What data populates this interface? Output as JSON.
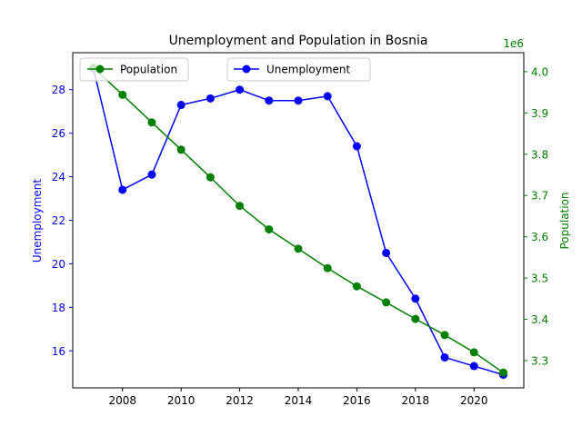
{
  "chart_data": {
    "type": "line",
    "title": "Unemployment and Population in Bosnia",
    "x": [
      2007,
      2008,
      2009,
      2010,
      2011,
      2012,
      2013,
      2014,
      2015,
      2016,
      2017,
      2018,
      2019,
      2020,
      2021
    ],
    "x_ticks": [
      2008,
      2010,
      2012,
      2014,
      2016,
      2018,
      2020
    ],
    "xlim": [
      2006.3,
      2021.7
    ],
    "left_axis": {
      "label": "Unemployment",
      "color": "#0000ff",
      "ylim": [
        14.3,
        29.7
      ],
      "ticks": [
        16,
        18,
        20,
        22,
        24,
        26,
        28
      ]
    },
    "right_axis": {
      "label": "Population",
      "color": "#008000",
      "offset_text": "1e6",
      "ylim": [
        3.234,
        4.046
      ],
      "ticks": [
        3.3,
        3.4,
        3.5,
        3.6,
        3.7,
        3.8,
        3.9,
        4.0
      ]
    },
    "series": [
      {
        "name": "Unemployment",
        "axis": "left",
        "color": "#0000ff",
        "values": [
          29.0,
          23.4,
          24.1,
          27.3,
          27.6,
          28.0,
          27.5,
          27.5,
          27.7,
          25.4,
          20.5,
          18.4,
          15.7,
          15.3,
          14.9
        ]
      },
      {
        "name": "Population",
        "axis": "right",
        "color": "#008000",
        "values": [
          4.01,
          3.944,
          3.877,
          3.811,
          3.744,
          3.675,
          3.618,
          3.571,
          3.524,
          3.48,
          3.441,
          3.401,
          3.362,
          3.32,
          3.271
        ]
      }
    ],
    "legends": [
      {
        "position": "upper-left",
        "entries": [
          "Population"
        ]
      },
      {
        "position": "upper-center",
        "entries": [
          "Unemployment"
        ]
      }
    ]
  }
}
